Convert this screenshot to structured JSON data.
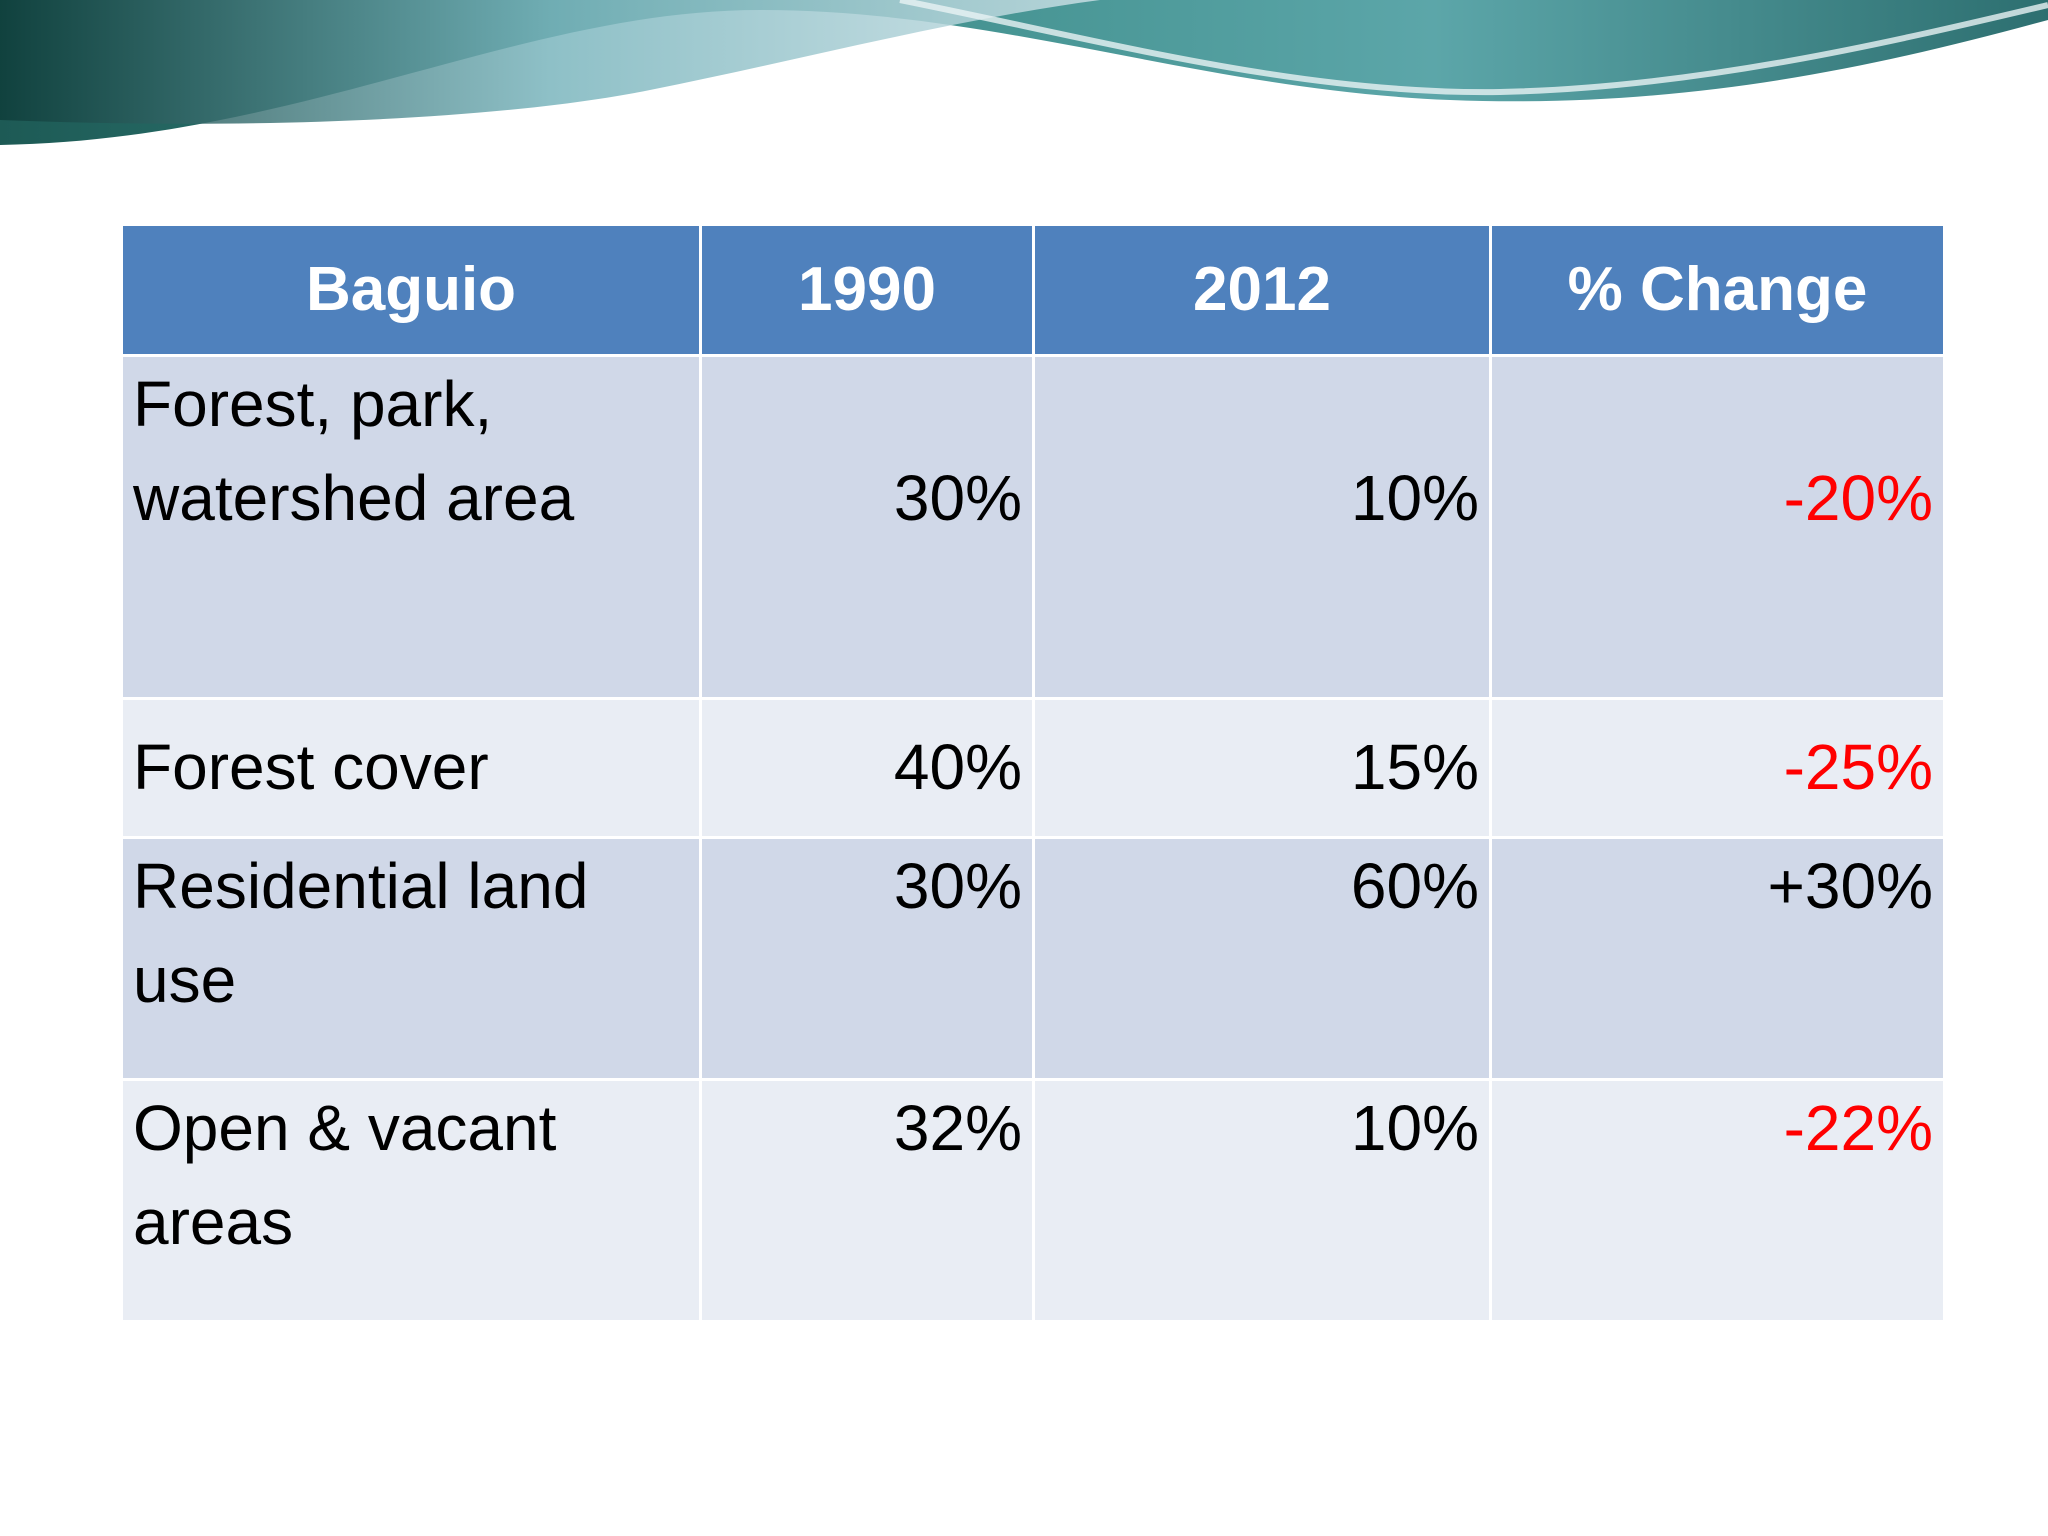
{
  "table": {
    "header": [
      "Baguio",
      "1990",
      "2012",
      "% Change"
    ],
    "rows": [
      [
        "Forest, park, watershed area",
        "30%",
        "10%",
        "-20%"
      ],
      [
        "Forest cover",
        "40%",
        "15%",
        "-25%"
      ],
      [
        "Residential land use",
        "30%",
        "60%",
        "+30%"
      ],
      [
        "Open & vacant areas",
        "32%",
        "10%",
        "-22%"
      ]
    ]
  }
}
